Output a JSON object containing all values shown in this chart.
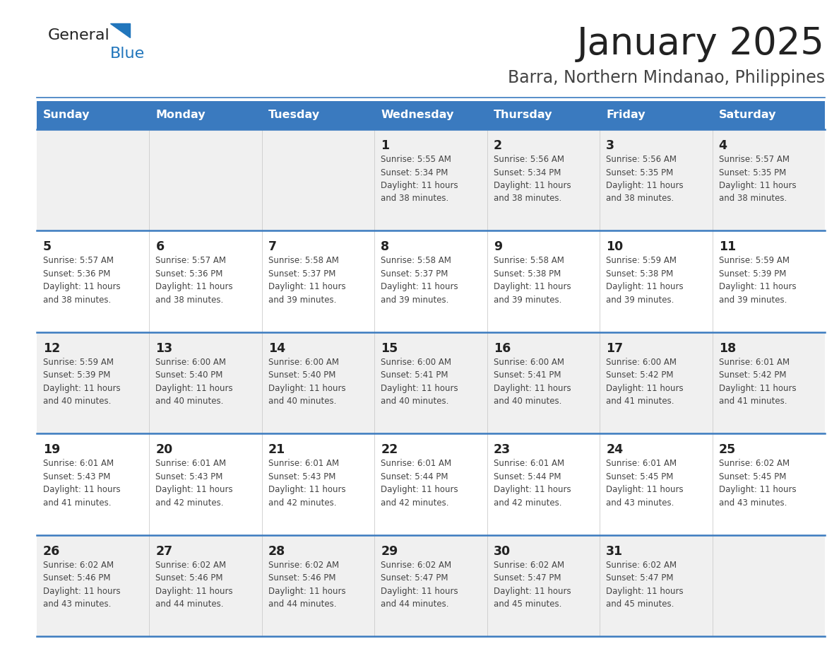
{
  "title": "January 2025",
  "subtitle": "Barra, Northern Mindanao, Philippines",
  "days_of_week": [
    "Sunday",
    "Monday",
    "Tuesday",
    "Wednesday",
    "Thursday",
    "Friday",
    "Saturday"
  ],
  "header_bg": "#3a7abf",
  "header_text_color": "#ffffff",
  "cell_bg_row0": "#f0f0f0",
  "cell_bg_row1": "#ffffff",
  "cell_bg_row2": "#f0f0f0",
  "cell_bg_row3": "#ffffff",
  "cell_bg_row4": "#f0f0f0",
  "row_line_color": "#3a7abf",
  "title_color": "#222222",
  "subtitle_color": "#444444",
  "day_number_color": "#222222",
  "cell_text_color": "#444444",
  "logo_general_color": "#222222",
  "logo_blue_color": "#2176bc",
  "calendar": [
    [
      null,
      null,
      null,
      {
        "day": 1,
        "sunrise": "5:55 AM",
        "sunset": "5:34 PM",
        "daylight": "11 hours and 38 minutes."
      },
      {
        "day": 2,
        "sunrise": "5:56 AM",
        "sunset": "5:34 PM",
        "daylight": "11 hours and 38 minutes."
      },
      {
        "day": 3,
        "sunrise": "5:56 AM",
        "sunset": "5:35 PM",
        "daylight": "11 hours and 38 minutes."
      },
      {
        "day": 4,
        "sunrise": "5:57 AM",
        "sunset": "5:35 PM",
        "daylight": "11 hours and 38 minutes."
      }
    ],
    [
      {
        "day": 5,
        "sunrise": "5:57 AM",
        "sunset": "5:36 PM",
        "daylight": "11 hours and 38 minutes."
      },
      {
        "day": 6,
        "sunrise": "5:57 AM",
        "sunset": "5:36 PM",
        "daylight": "11 hours and 38 minutes."
      },
      {
        "day": 7,
        "sunrise": "5:58 AM",
        "sunset": "5:37 PM",
        "daylight": "11 hours and 39 minutes."
      },
      {
        "day": 8,
        "sunrise": "5:58 AM",
        "sunset": "5:37 PM",
        "daylight": "11 hours and 39 minutes."
      },
      {
        "day": 9,
        "sunrise": "5:58 AM",
        "sunset": "5:38 PM",
        "daylight": "11 hours and 39 minutes."
      },
      {
        "day": 10,
        "sunrise": "5:59 AM",
        "sunset": "5:38 PM",
        "daylight": "11 hours and 39 minutes."
      },
      {
        "day": 11,
        "sunrise": "5:59 AM",
        "sunset": "5:39 PM",
        "daylight": "11 hours and 39 minutes."
      }
    ],
    [
      {
        "day": 12,
        "sunrise": "5:59 AM",
        "sunset": "5:39 PM",
        "daylight": "11 hours and 40 minutes."
      },
      {
        "day": 13,
        "sunrise": "6:00 AM",
        "sunset": "5:40 PM",
        "daylight": "11 hours and 40 minutes."
      },
      {
        "day": 14,
        "sunrise": "6:00 AM",
        "sunset": "5:40 PM",
        "daylight": "11 hours and 40 minutes."
      },
      {
        "day": 15,
        "sunrise": "6:00 AM",
        "sunset": "5:41 PM",
        "daylight": "11 hours and 40 minutes."
      },
      {
        "day": 16,
        "sunrise": "6:00 AM",
        "sunset": "5:41 PM",
        "daylight": "11 hours and 40 minutes."
      },
      {
        "day": 17,
        "sunrise": "6:00 AM",
        "sunset": "5:42 PM",
        "daylight": "11 hours and 41 minutes."
      },
      {
        "day": 18,
        "sunrise": "6:01 AM",
        "sunset": "5:42 PM",
        "daylight": "11 hours and 41 minutes."
      }
    ],
    [
      {
        "day": 19,
        "sunrise": "6:01 AM",
        "sunset": "5:43 PM",
        "daylight": "11 hours and 41 minutes."
      },
      {
        "day": 20,
        "sunrise": "6:01 AM",
        "sunset": "5:43 PM",
        "daylight": "11 hours and 42 minutes."
      },
      {
        "day": 21,
        "sunrise": "6:01 AM",
        "sunset": "5:43 PM",
        "daylight": "11 hours and 42 minutes."
      },
      {
        "day": 22,
        "sunrise": "6:01 AM",
        "sunset": "5:44 PM",
        "daylight": "11 hours and 42 minutes."
      },
      {
        "day": 23,
        "sunrise": "6:01 AM",
        "sunset": "5:44 PM",
        "daylight": "11 hours and 42 minutes."
      },
      {
        "day": 24,
        "sunrise": "6:01 AM",
        "sunset": "5:45 PM",
        "daylight": "11 hours and 43 minutes."
      },
      {
        "day": 25,
        "sunrise": "6:02 AM",
        "sunset": "5:45 PM",
        "daylight": "11 hours and 43 minutes."
      }
    ],
    [
      {
        "day": 26,
        "sunrise": "6:02 AM",
        "sunset": "5:46 PM",
        "daylight": "11 hours and 43 minutes."
      },
      {
        "day": 27,
        "sunrise": "6:02 AM",
        "sunset": "5:46 PM",
        "daylight": "11 hours and 44 minutes."
      },
      {
        "day": 28,
        "sunrise": "6:02 AM",
        "sunset": "5:46 PM",
        "daylight": "11 hours and 44 minutes."
      },
      {
        "day": 29,
        "sunrise": "6:02 AM",
        "sunset": "5:47 PM",
        "daylight": "11 hours and 44 minutes."
      },
      {
        "day": 30,
        "sunrise": "6:02 AM",
        "sunset": "5:47 PM",
        "daylight": "11 hours and 45 minutes."
      },
      {
        "day": 31,
        "sunrise": "6:02 AM",
        "sunset": "5:47 PM",
        "daylight": "11 hours and 45 minutes."
      },
      null
    ]
  ],
  "fig_width": 11.88,
  "fig_height": 9.18,
  "dpi": 100
}
